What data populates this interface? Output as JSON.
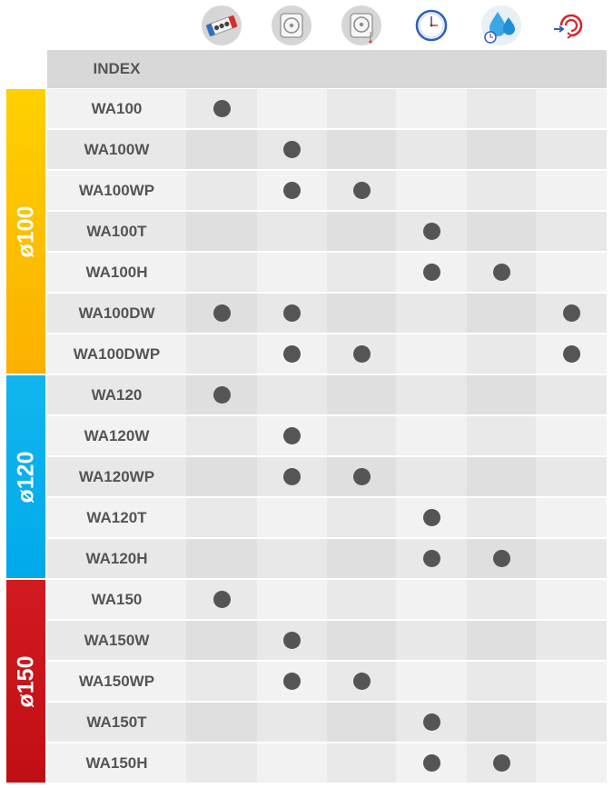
{
  "header": {
    "index_label": "INDEX",
    "icons": [
      {
        "name": "ball-bearing-icon"
      },
      {
        "name": "fan-front-icon"
      },
      {
        "name": "fan-front-pull-cord-icon"
      },
      {
        "name": "clock-timer-icon"
      },
      {
        "name": "humidity-timer-icon"
      },
      {
        "name": "draught-shutter-icon"
      }
    ]
  },
  "groups": [
    {
      "label": "ø100",
      "rows": 7,
      "color_top": "#ffd000",
      "color_bottom": "#fbb000"
    },
    {
      "label": "ø120",
      "rows": 5,
      "color_top": "#12b5ee",
      "color_bottom": "#00aaea"
    },
    {
      "label": "ø150",
      "rows": 5,
      "color_top": "#d21a20",
      "color_bottom": "#c00f14"
    }
  ],
  "rows": [
    {
      "name": "WA100",
      "features": [
        true,
        false,
        false,
        false,
        false,
        false
      ]
    },
    {
      "name": "WA100W",
      "features": [
        false,
        true,
        false,
        false,
        false,
        false
      ]
    },
    {
      "name": "WA100WP",
      "features": [
        false,
        true,
        true,
        false,
        false,
        false
      ]
    },
    {
      "name": "WA100T",
      "features": [
        false,
        false,
        false,
        true,
        false,
        false
      ]
    },
    {
      "name": "WA100H",
      "features": [
        false,
        false,
        false,
        true,
        true,
        false
      ]
    },
    {
      "name": "WA100DW",
      "features": [
        true,
        true,
        false,
        false,
        false,
        true
      ]
    },
    {
      "name": "WA100DWP",
      "features": [
        false,
        true,
        true,
        false,
        false,
        true
      ]
    },
    {
      "name": "WA120",
      "features": [
        true,
        false,
        false,
        false,
        false,
        false
      ]
    },
    {
      "name": "WA120W",
      "features": [
        false,
        true,
        false,
        false,
        false,
        false
      ]
    },
    {
      "name": "WA120WP",
      "features": [
        false,
        true,
        true,
        false,
        false,
        false
      ]
    },
    {
      "name": "WA120T",
      "features": [
        false,
        false,
        false,
        true,
        false,
        false
      ]
    },
    {
      "name": "WA120H",
      "features": [
        false,
        false,
        false,
        true,
        true,
        false
      ]
    },
    {
      "name": "WA150",
      "features": [
        true,
        false,
        false,
        false,
        false,
        false
      ]
    },
    {
      "name": "WA150W",
      "features": [
        false,
        true,
        false,
        false,
        false,
        false
      ]
    },
    {
      "name": "WA150WP",
      "features": [
        false,
        true,
        true,
        false,
        false,
        false
      ]
    },
    {
      "name": "WA150T",
      "features": [
        false,
        false,
        false,
        true,
        false,
        false
      ]
    },
    {
      "name": "WA150H",
      "features": [
        false,
        false,
        false,
        true,
        true,
        false
      ]
    }
  ],
  "colors": {
    "row_odd": "#f2f2f2",
    "row_even": "#e8e8e8",
    "col_shade": "#e7e7e7",
    "dot": "#555555",
    "text": "#555555",
    "header_bg": "#d8d8d8"
  }
}
